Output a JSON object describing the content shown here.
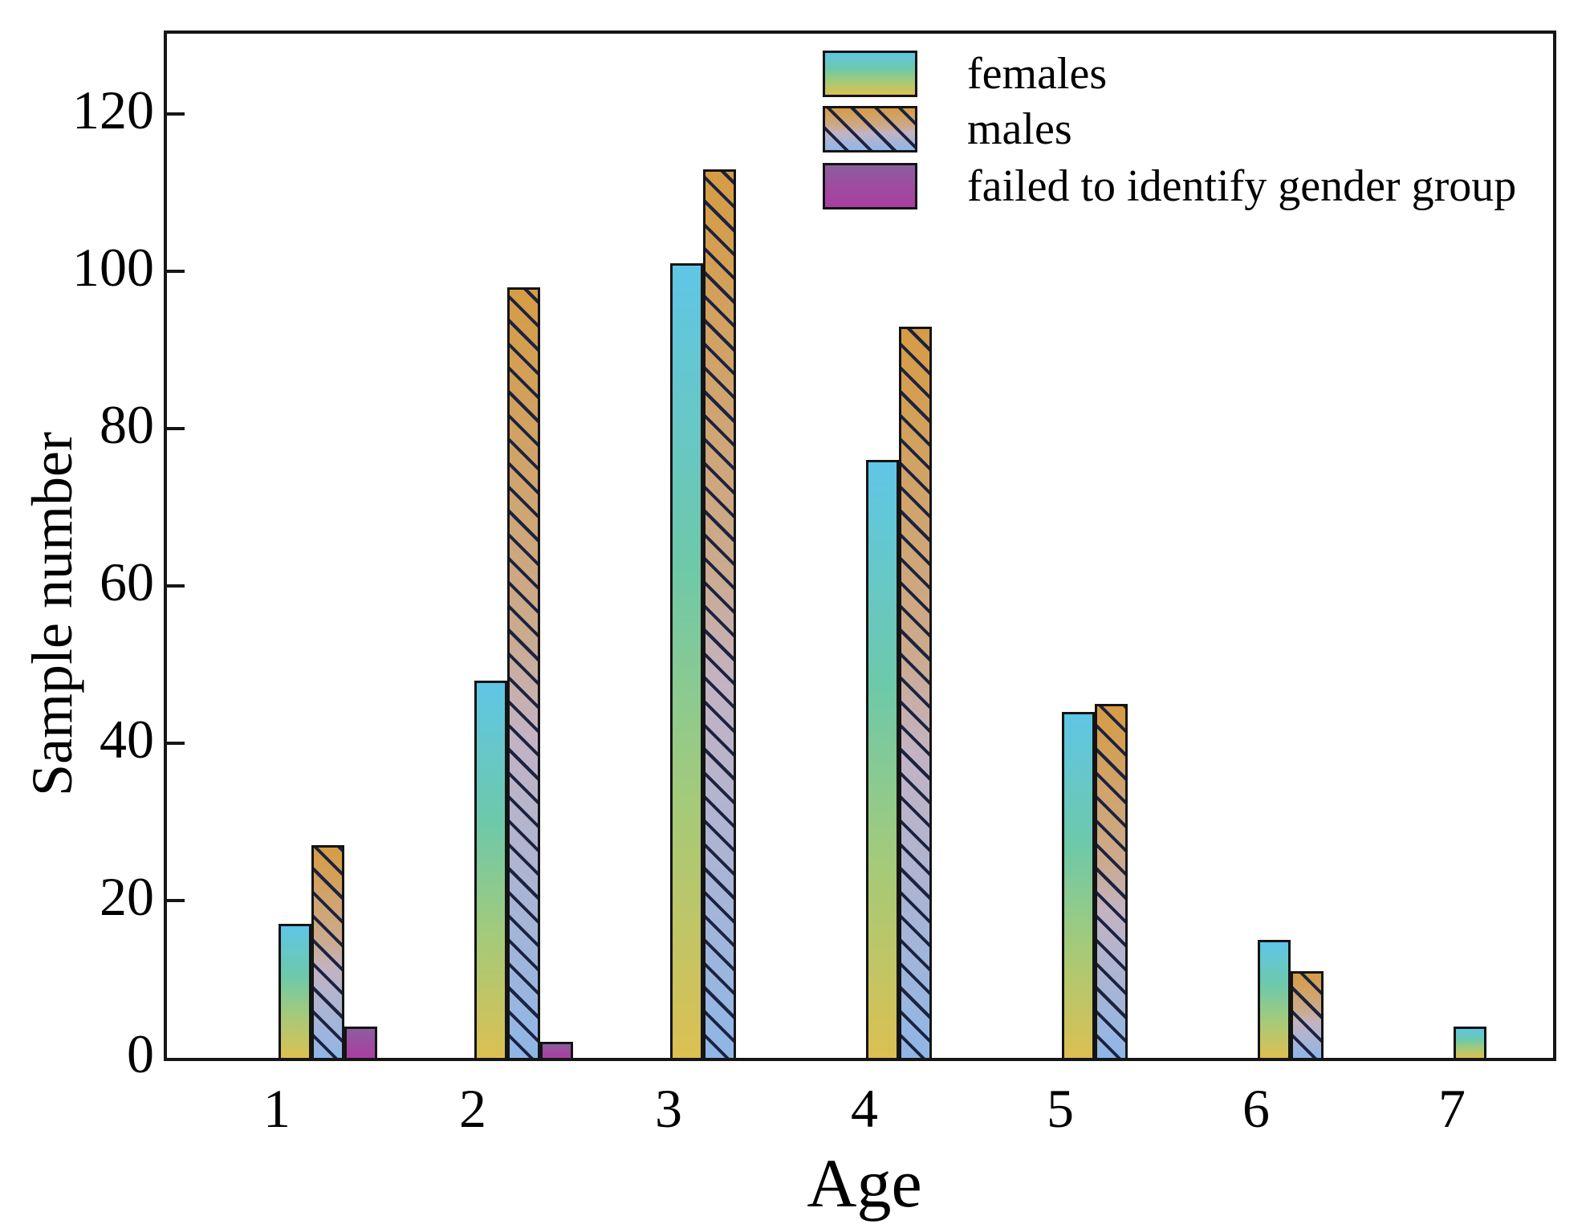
{
  "figure": {
    "ylabel": "Sample number",
    "xlabel": "Age",
    "x_tick_labels": [
      "1",
      "2",
      "3",
      "4",
      "5",
      "6",
      "7"
    ],
    "y_tick_labels": [
      "0",
      "20",
      "40",
      "60",
      "80",
      "100",
      "120"
    ]
  },
  "legend": {
    "entries": [
      {
        "key": "females",
        "label": "females"
      },
      {
        "key": "males",
        "label": "males"
      },
      {
        "key": "unidentified",
        "label": "failed to identify gender group"
      }
    ]
  },
  "chart_data": {
    "type": "bar",
    "title": "",
    "xlabel": "Age",
    "ylabel": "Sample number",
    "categories": [
      1,
      2,
      3,
      4,
      5,
      6,
      7
    ],
    "series": [
      {
        "key": "females",
        "name": "females",
        "values": [
          17,
          48,
          101,
          76,
          44,
          15,
          4
        ]
      },
      {
        "key": "males",
        "name": "males",
        "values": [
          27,
          98,
          113,
          93,
          45,
          11,
          null
        ]
      },
      {
        "key": "unidentified",
        "name": "failed to identify gender group",
        "values": [
          4,
          2,
          null,
          null,
          null,
          null,
          null
        ]
      }
    ],
    "ylim": [
      0,
      130
    ],
    "yticks": [
      0,
      20,
      40,
      60,
      80,
      100,
      120
    ],
    "grid": false,
    "legend_position": "upper center, inside axes",
    "colors": {
      "females_gradient": [
        "#5FC6E6",
        "#6EC9A9",
        "#A5CA79",
        "#DCC052"
      ],
      "males_gradient": [
        "#D69C44",
        "#CBAA8E",
        "#C3B3C3",
        "#8FB6E6"
      ],
      "males_hatch": "#1B2340",
      "unidentified_gradient": [
        "#8A5F9D",
        "#A83FA0"
      ],
      "bar_outline": "#141414",
      "axis_color": "#161616"
    }
  }
}
